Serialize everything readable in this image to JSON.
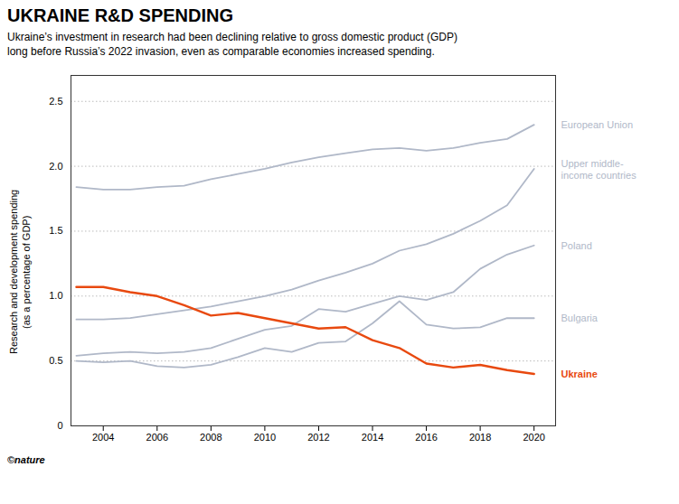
{
  "chart_data": {
    "type": "line",
    "title": "UKRAINE R&D SPENDING",
    "subtitle": "Ukraine’s investment in research had been declining relative to gross domestic product (GDP)\nlong before Russia’s 2022 invasion, even as comparable economies increased spending.",
    "ylabel": "Research and development spending\n(as a percentage of GDP)",
    "footer": "©nature",
    "x": [
      2003,
      2004,
      2005,
      2006,
      2007,
      2008,
      2009,
      2010,
      2011,
      2012,
      2013,
      2014,
      2015,
      2016,
      2017,
      2018,
      2019,
      2020
    ],
    "xlim": [
      2002.8,
      2020.8
    ],
    "xticks": [
      2004,
      2006,
      2008,
      2010,
      2012,
      2014,
      2016,
      2018,
      2020
    ],
    "ylim": [
      0,
      2.7
    ],
    "yticks": [
      0,
      0.5,
      {
        "value": 1.0,
        "label": "1.0"
      },
      1.5,
      {
        "value": 2.0,
        "label": "2.0"
      },
      2.5
    ],
    "grid": true,
    "series": [
      {
        "name": "European Union",
        "color": "#b0b8c8",
        "values": [
          1.84,
          1.82,
          1.82,
          1.84,
          1.85,
          1.9,
          1.94,
          1.98,
          2.03,
          2.07,
          2.1,
          2.13,
          2.14,
          2.12,
          2.14,
          2.18,
          2.21,
          2.32
        ]
      },
      {
        "name": "Upper middle-\nincome countries",
        "color": "#b0b8c8",
        "values": [
          0.82,
          0.82,
          0.83,
          0.86,
          0.89,
          0.92,
          0.96,
          1.0,
          1.05,
          1.12,
          1.18,
          1.25,
          1.35,
          1.4,
          1.48,
          1.58,
          1.7,
          1.98
        ]
      },
      {
        "name": "Poland",
        "color": "#b0b8c8",
        "values": [
          0.54,
          0.56,
          0.57,
          0.56,
          0.57,
          0.6,
          0.67,
          0.74,
          0.77,
          0.9,
          0.88,
          0.94,
          1.0,
          0.97,
          1.03,
          1.21,
          1.32,
          1.39
        ]
      },
      {
        "name": "Bulgaria",
        "color": "#b0b8c8",
        "values": [
          0.5,
          0.49,
          0.5,
          0.46,
          0.45,
          0.47,
          0.53,
          0.6,
          0.57,
          0.64,
          0.65,
          0.79,
          0.96,
          0.78,
          0.75,
          0.76,
          0.83,
          0.83
        ]
      },
      {
        "name": "Ukraine",
        "color": "#e8490f",
        "values": [
          1.07,
          1.07,
          1.03,
          1.0,
          0.93,
          0.85,
          0.87,
          0.83,
          0.79,
          0.75,
          0.76,
          0.66,
          0.6,
          0.48,
          0.45,
          0.47,
          0.43,
          0.4
        ]
      }
    ]
  }
}
